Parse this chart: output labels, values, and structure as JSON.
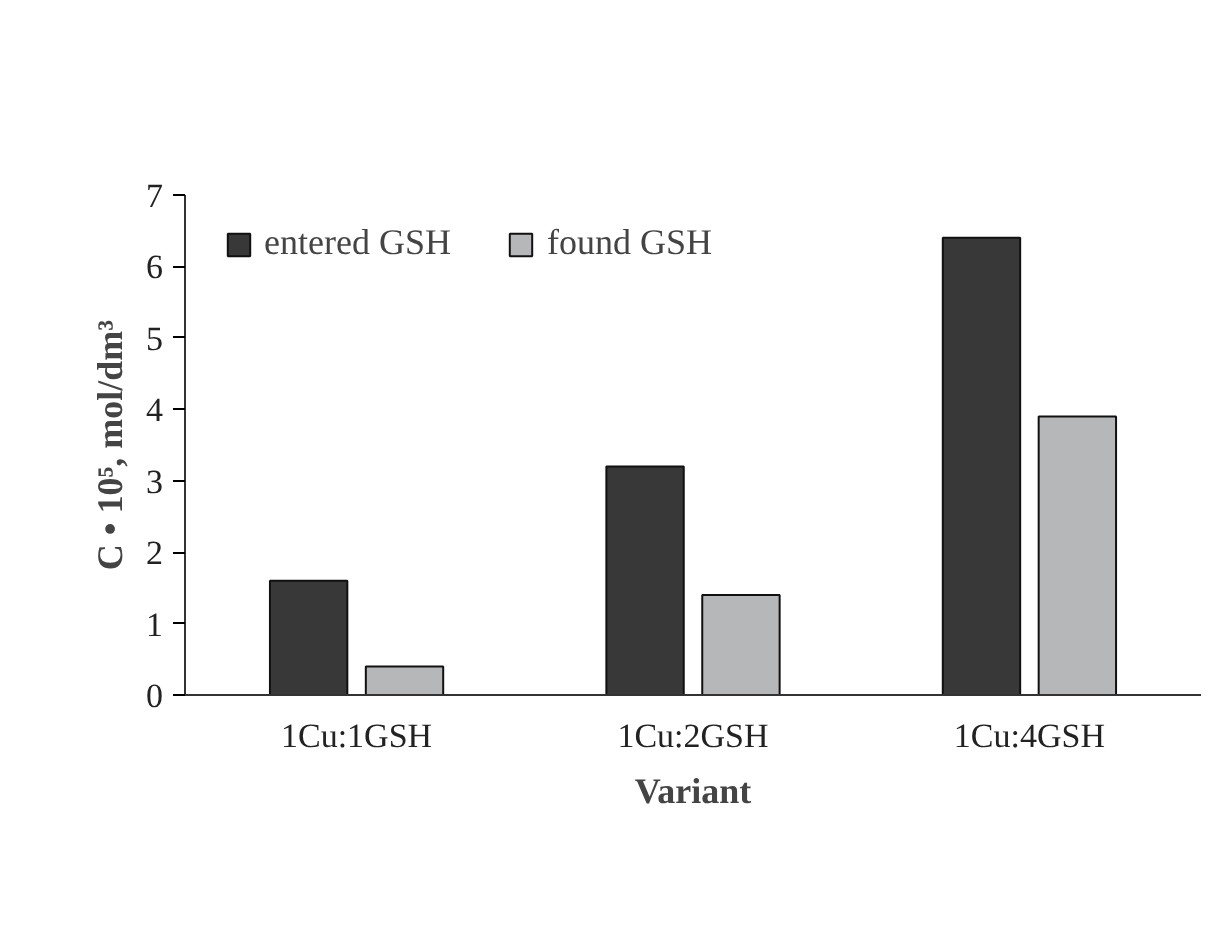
{
  "chart_data": {
    "type": "bar",
    "xlabel": "Variant",
    "ylabel": "C • 10⁵, mol/dm³",
    "categories": [
      "1Cu:1GSH",
      "1Cu:2GSH",
      "1Cu:4GSH"
    ],
    "series": [
      {
        "name": "entered GSH",
        "color": "#383838",
        "values": [
          1.6,
          3.2,
          6.4
        ]
      },
      {
        "name": "found GSH",
        "color": "#b6b7b9",
        "values": [
          0.4,
          1.4,
          3.9
        ]
      }
    ],
    "ylim": [
      0,
      7
    ],
    "yticks": [
      0,
      1,
      2,
      3,
      4,
      5,
      6,
      7
    ],
    "grid": false,
    "legend": "top left"
  }
}
